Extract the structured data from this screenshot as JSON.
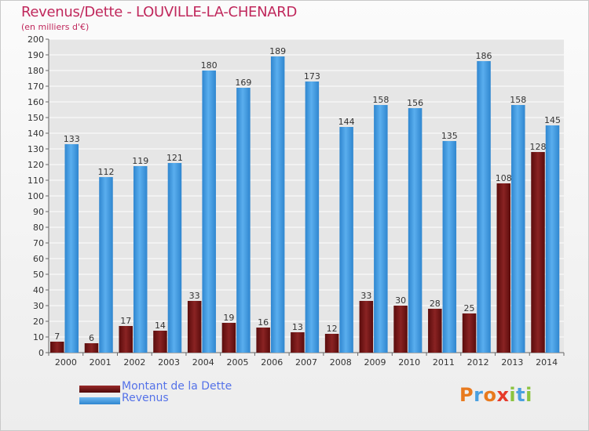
{
  "chart_data": {
    "type": "bar",
    "title": "Revenus/Dette - LOUVILLE-LA-CHENARD",
    "subtitle": "(en milliers d'€)",
    "categories": [
      "2000",
      "2001",
      "2002",
      "2003",
      "2004",
      "2005",
      "2006",
      "2007",
      "2008",
      "2009",
      "2010",
      "2011",
      "2012",
      "2013",
      "2014"
    ],
    "series": [
      {
        "name": "Montant de la Dette",
        "color": "#7a1a1a",
        "values": [
          7,
          6,
          17,
          14,
          33,
          19,
          16,
          13,
          12,
          33,
          30,
          28,
          25,
          108,
          128
        ]
      },
      {
        "name": "Revenus",
        "color": "#3f9ee6",
        "values": [
          133,
          112,
          119,
          121,
          180,
          169,
          189,
          173,
          144,
          158,
          156,
          135,
          186,
          158,
          145
        ]
      }
    ],
    "ylim": [
      0,
      200
    ],
    "ytick_step": 10,
    "grid": true,
    "legend_position": "bottom-left"
  },
  "logo_text": "Proxiti",
  "colors": {
    "title": "#c0285c",
    "legend_text": "#5572e8",
    "grid": "#ffffff",
    "plot_background": "#e6e6e6"
  }
}
